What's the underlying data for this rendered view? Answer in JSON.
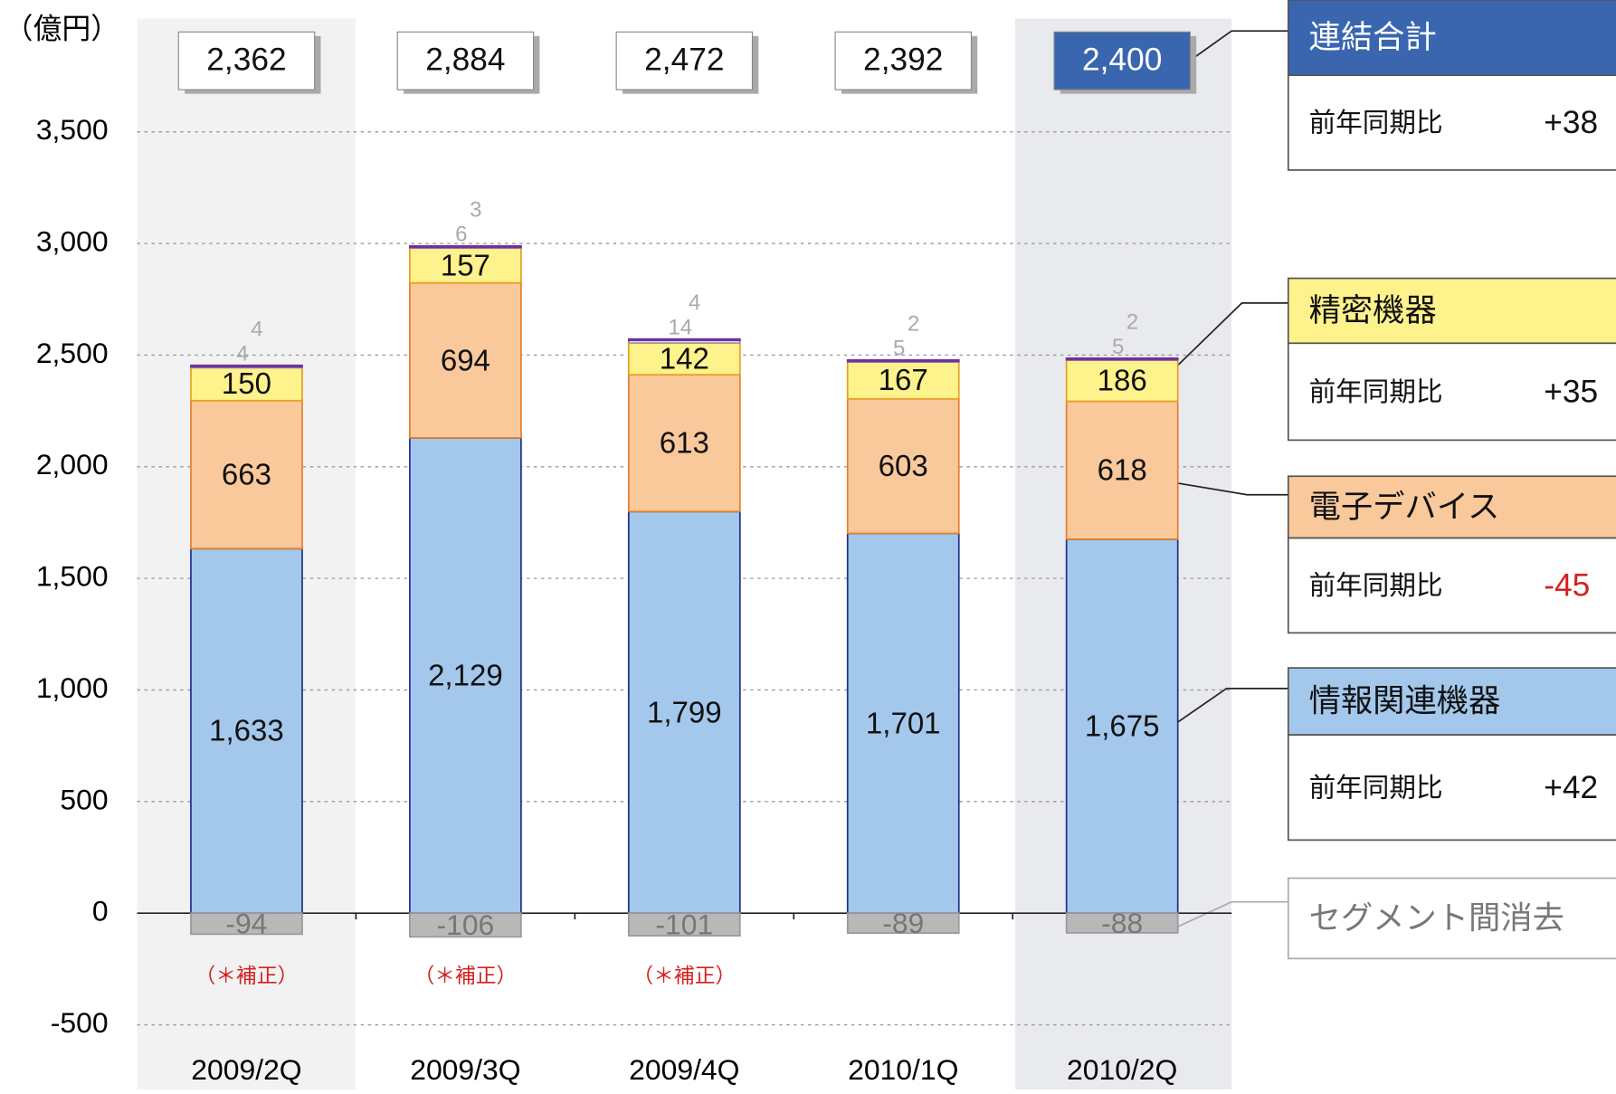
{
  "chart_data": {
    "type": "bar",
    "stacked": true,
    "unit_label": "（億円）",
    "categories": [
      "2009/2Q",
      "2009/3Q",
      "2009/4Q",
      "2010/1Q",
      "2010/2Q"
    ],
    "series": [
      {
        "name": "情報関連機器",
        "color": "#a3c8ec",
        "stroke": "#1f2f8f",
        "values": [
          1633,
          2129,
          1799,
          1701,
          1675
        ],
        "value_labels": [
          "1,633",
          "2,129",
          "1,799",
          "1,701",
          "1,675"
        ],
        "yoy": "+42"
      },
      {
        "name": "電子デバイス",
        "color": "#f9c89b",
        "stroke": "#e87d2a",
        "values": [
          663,
          694,
          613,
          603,
          618
        ],
        "yoy": "-45"
      },
      {
        "name": "精密機器",
        "color": "#fef28c",
        "stroke": "#e8a020",
        "values": [
          150,
          157,
          142,
          167,
          186
        ],
        "yoy": "+35"
      },
      {
        "color": "#ffffff",
        "stroke": "#999999",
        "values": [
          4,
          6,
          14,
          5,
          5
        ]
      },
      {
        "color": "#7030a0",
        "stroke": "#7030a0",
        "values": [
          4,
          3,
          4,
          2,
          2
        ]
      },
      {
        "name": "セグメント間消去",
        "color": "#b8b8b8",
        "stroke": "#999999",
        "values": [
          -94,
          -106,
          -101,
          -89,
          -88
        ]
      }
    ],
    "totals": {
      "name": "連結合計",
      "color": "#3a66b0",
      "values": [
        2362,
        2884,
        2472,
        2392,
        2400
      ],
      "value_labels": [
        "2,362",
        "2,884",
        "2,472",
        "2,392",
        "2,400"
      ],
      "yoy": "+38"
    },
    "yoy_label": "前年同期比",
    "annotations": [
      "（＊補正）",
      "（＊補正）",
      "（＊補正）"
    ],
    "ylim": [
      -700,
      4000
    ],
    "yticks": [
      {
        "value": -500,
        "label": "-500"
      },
      0,
      500,
      {
        "value": 1000,
        "label": "1,000"
      },
      {
        "value": 1500,
        "label": "1,500"
      },
      {
        "value": 2000,
        "label": "2,000"
      },
      {
        "value": 2500,
        "label": "2,500"
      },
      {
        "value": 3000,
        "label": "3,000"
      },
      {
        "value": 3500,
        "label": "3,500"
      }
    ],
    "grid": true
  }
}
